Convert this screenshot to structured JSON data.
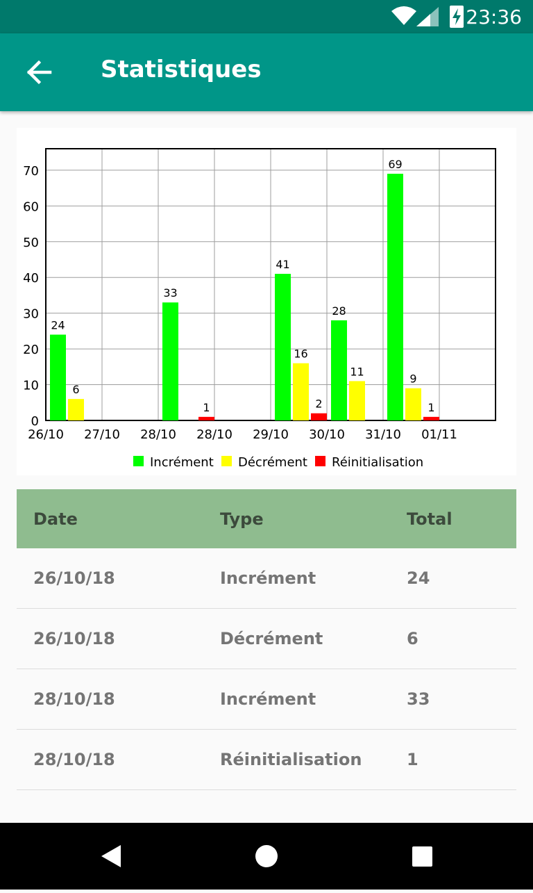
{
  "status_bar": {
    "time": "23:36",
    "icons": [
      "wifi-icon",
      "signal-icon",
      "battery-charging-icon"
    ]
  },
  "app_bar": {
    "title": "Statistiques",
    "back_icon": "arrow-back-icon"
  },
  "chart_data": {
    "type": "bar",
    "categories": [
      "26/10",
      "27/10",
      "28/10",
      "28/10",
      "29/10",
      "30/10",
      "31/10",
      "01/11"
    ],
    "y_ticks": [
      "0",
      "10",
      "20",
      "30",
      "40",
      "50",
      "60",
      "70"
    ],
    "ylim": [
      0,
      76
    ],
    "grid": true,
    "legend": "bottom",
    "series": [
      {
        "name": "Incrément",
        "color": "#00ff00",
        "values": [
          24,
          null,
          33,
          null,
          41,
          28,
          69,
          null
        ],
        "labels": [
          "24",
          "",
          "33",
          "",
          "41",
          "28",
          "69",
          ""
        ]
      },
      {
        "name": "Décrément",
        "color": "#ffff00",
        "values": [
          6,
          null,
          null,
          null,
          16,
          11,
          9,
          null
        ],
        "labels": [
          "6",
          "",
          "",
          "",
          "16",
          "11",
          "9",
          ""
        ]
      },
      {
        "name": "Réinitialisation",
        "color": "#ff0000",
        "values": [
          null,
          null,
          1,
          null,
          2,
          null,
          1,
          null
        ],
        "labels": [
          "",
          "",
          "1",
          "",
          "2",
          "",
          "1",
          ""
        ]
      }
    ]
  },
  "table": {
    "headers": {
      "date": "Date",
      "type": "Type",
      "total": "Total"
    },
    "rows": [
      {
        "date": "26/10/18",
        "type": "Incrément",
        "total": "24"
      },
      {
        "date": "26/10/18",
        "type": "Décrément",
        "total": "6"
      },
      {
        "date": "28/10/18",
        "type": "Incrément",
        "total": "33"
      },
      {
        "date": "28/10/18",
        "type": "Réinitialisation",
        "total": "1"
      }
    ]
  },
  "nav_bar": {
    "icons": [
      "back-triangle-icon",
      "home-circle-icon",
      "recents-square-icon"
    ]
  }
}
